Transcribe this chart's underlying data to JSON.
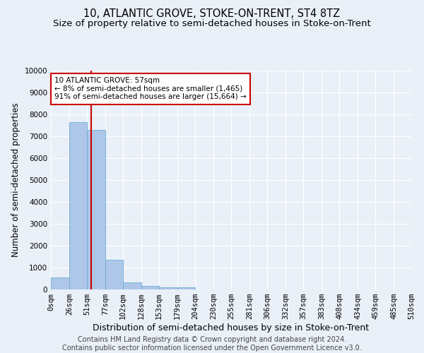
{
  "title": "10, ATLANTIC GROVE, STOKE-ON-TRENT, ST4 8TZ",
  "subtitle": "Size of property relative to semi-detached houses in Stoke-on-Trent",
  "xlabel": "Distribution of semi-detached houses by size in Stoke-on-Trent",
  "ylabel": "Number of semi-detached properties",
  "footer_line1": "Contains HM Land Registry data © Crown copyright and database right 2024.",
  "footer_line2": "Contains public sector information licensed under the Open Government Licence v3.0.",
  "bins": [
    0,
    26,
    51,
    77,
    102,
    128,
    153,
    179,
    204,
    230,
    255,
    281,
    306,
    332,
    357,
    383,
    408,
    434,
    459,
    485,
    510
  ],
  "bin_labels": [
    "0sqm",
    "26sqm",
    "51sqm",
    "77sqm",
    "102sqm",
    "128sqm",
    "153sqm",
    "179sqm",
    "204sqm",
    "230sqm",
    "255sqm",
    "281sqm",
    "306sqm",
    "332sqm",
    "357sqm",
    "383sqm",
    "408sqm",
    "434sqm",
    "459sqm",
    "485sqm",
    "510sqm"
  ],
  "bar_heights": [
    560,
    7650,
    7280,
    1360,
    310,
    165,
    110,
    90,
    0,
    0,
    0,
    0,
    0,
    0,
    0,
    0,
    0,
    0,
    0,
    0
  ],
  "bar_color": "#aec6e8",
  "bar_edge_color": "#6aafd6",
  "property_line_x": 57,
  "red_line_color": "#cc0000",
  "annotation_text": "10 ATLANTIC GROVE: 57sqm\n← 8% of semi-detached houses are smaller (1,465)\n91% of semi-detached houses are larger (15,664) →",
  "annotation_box_color": "#ffffff",
  "annotation_box_edge": "#cc0000",
  "ylim": [
    0,
    10000
  ],
  "yticks": [
    0,
    1000,
    2000,
    3000,
    4000,
    5000,
    6000,
    7000,
    8000,
    9000,
    10000
  ],
  "bg_color": "#eaf0f8",
  "plot_bg_color": "#eaf0f8",
  "grid_color": "#ffffff",
  "title_fontsize": 10.5,
  "subtitle_fontsize": 9.5,
  "xlabel_fontsize": 9,
  "ylabel_fontsize": 8.5,
  "tick_fontsize": 7.5,
  "footer_fontsize": 7,
  "annot_fontsize": 7.5
}
